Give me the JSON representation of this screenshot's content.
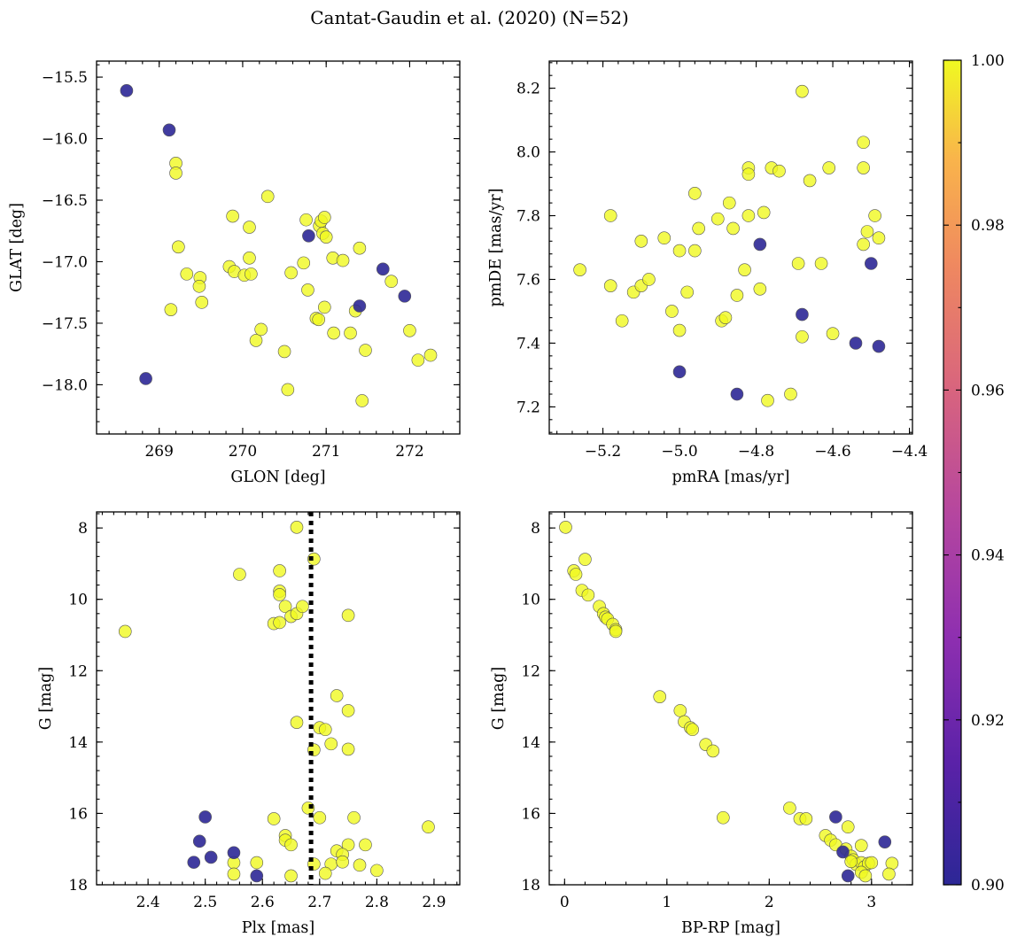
{
  "figure_title": "Cantat-Gaudin et al. (2020) (N=52)",
  "colors": {
    "member_high": "#f0f921",
    "member_low": "#2c2796",
    "colormap": "plasma"
  },
  "chart_data": [
    {
      "type": "scatter",
      "id": "glon_glat",
      "xlabel": "GLON [deg]",
      "ylabel": "GLAT [deg]",
      "xlim": [
        268.25,
        272.6
      ],
      "ylim": [
        -18.4,
        -15.37
      ],
      "y_inverted": false,
      "xticks": [
        269,
        270,
        271,
        272
      ],
      "xtick_labels": [
        "269",
        "270",
        "271",
        "272"
      ],
      "yticks": [
        -15.5,
        -16.0,
        -16.5,
        -17.0,
        -17.5,
        -18.0
      ],
      "ytick_labels": [
        "−15.5",
        "−16.0",
        "−16.5",
        "−17.0",
        "−17.5",
        "−18.0"
      ],
      "points_high": [
        [
          269.2,
          -16.2
        ],
        [
          269.2,
          -16.28
        ],
        [
          269.23,
          -16.88
        ],
        [
          269.33,
          -17.1
        ],
        [
          269.49,
          -17.13
        ],
        [
          269.48,
          -17.2
        ],
        [
          269.51,
          -17.33
        ],
        [
          269.14,
          -17.39
        ],
        [
          269.84,
          -17.04
        ],
        [
          269.88,
          -16.63
        ],
        [
          269.9,
          -17.08
        ],
        [
          270.02,
          -17.11
        ],
        [
          270.08,
          -16.97
        ],
        [
          270.1,
          -17.1
        ],
        [
          270.08,
          -16.72
        ],
        [
          270.16,
          -17.64
        ],
        [
          270.22,
          -17.55
        ],
        [
          270.3,
          -16.47
        ],
        [
          270.5,
          -17.73
        ],
        [
          270.54,
          -18.04
        ],
        [
          270.58,
          -17.09
        ],
        [
          270.76,
          -16.66
        ],
        [
          270.73,
          -17.01
        ],
        [
          270.78,
          -17.23
        ],
        [
          270.88,
          -17.46
        ],
        [
          270.91,
          -17.47
        ],
        [
          270.92,
          -16.71
        ],
        [
          270.94,
          -16.67
        ],
        [
          270.98,
          -16.64
        ],
        [
          270.96,
          -16.77
        ],
        [
          271.0,
          -16.8
        ],
        [
          270.98,
          -17.37
        ],
        [
          271.08,
          -16.97
        ],
        [
          271.09,
          -17.58
        ],
        [
          271.2,
          -16.99
        ],
        [
          271.29,
          -17.58
        ],
        [
          271.35,
          -17.4
        ],
        [
          271.4,
          -16.89
        ],
        [
          271.43,
          -18.13
        ],
        [
          271.47,
          -17.72
        ],
        [
          271.78,
          -17.16
        ],
        [
          272.0,
          -17.56
        ],
        [
          272.1,
          -17.8
        ],
        [
          272.25,
          -17.76
        ]
      ],
      "points_low": [
        [
          268.61,
          -15.61
        ],
        [
          269.12,
          -15.93
        ],
        [
          268.84,
          -17.95
        ],
        [
          270.79,
          -16.79
        ],
        [
          271.4,
          -17.36
        ],
        [
          271.68,
          -17.06
        ],
        [
          271.94,
          -17.28
        ]
      ]
    },
    {
      "type": "scatter",
      "id": "pm",
      "xlabel": "pmRA [mas/yr]",
      "ylabel": "pmDE [mas/yr]",
      "xlim": [
        -5.34,
        -4.392
      ],
      "ylim": [
        7.115,
        8.285
      ],
      "y_inverted": false,
      "xticks": [
        -5.2,
        -5.0,
        -4.8,
        -4.6,
        -4.4
      ],
      "xtick_labels": [
        "−5.2",
        "−5.0",
        "−4.8",
        "−4.6",
        "−4.4"
      ],
      "yticks": [
        7.2,
        7.4,
        7.6,
        7.8,
        8.0,
        8.2
      ],
      "ytick_labels": [
        "7.2",
        "7.4",
        "7.6",
        "7.8",
        "8.0",
        "8.2"
      ],
      "points_high": [
        [
          -5.26,
          7.63
        ],
        [
          -5.18,
          7.8
        ],
        [
          -5.18,
          7.58
        ],
        [
          -5.15,
          7.47
        ],
        [
          -5.12,
          7.56
        ],
        [
          -5.1,
          7.58
        ],
        [
          -5.1,
          7.72
        ],
        [
          -5.08,
          7.6
        ],
        [
          -5.04,
          7.73
        ],
        [
          -5.02,
          7.5
        ],
        [
          -5.0,
          7.69
        ],
        [
          -5.0,
          7.44
        ],
        [
          -4.98,
          7.56
        ],
        [
          -4.96,
          7.87
        ],
        [
          -4.96,
          7.69
        ],
        [
          -4.95,
          7.76
        ],
        [
          -4.9,
          7.79
        ],
        [
          -4.89,
          7.47
        ],
        [
          -4.88,
          7.48
        ],
        [
          -4.87,
          7.84
        ],
        [
          -4.86,
          7.76
        ],
        [
          -4.85,
          7.55
        ],
        [
          -4.83,
          7.63
        ],
        [
          -4.82,
          7.95
        ],
        [
          -4.82,
          7.93
        ],
        [
          -4.82,
          7.8
        ],
        [
          -4.79,
          7.57
        ],
        [
          -4.78,
          7.81
        ],
        [
          -4.77,
          7.22
        ],
        [
          -4.76,
          7.95
        ],
        [
          -4.74,
          7.94
        ],
        [
          -4.71,
          7.24
        ],
        [
          -4.69,
          7.65
        ],
        [
          -4.68,
          8.19
        ],
        [
          -4.68,
          7.42
        ],
        [
          -4.66,
          7.91
        ],
        [
          -4.63,
          7.65
        ],
        [
          -4.61,
          7.95
        ],
        [
          -4.6,
          7.43
        ],
        [
          -4.52,
          8.03
        ],
        [
          -4.52,
          7.95
        ],
        [
          -4.52,
          7.71
        ],
        [
          -4.51,
          7.75
        ],
        [
          -4.49,
          7.8
        ],
        [
          -4.48,
          7.73
        ]
      ],
      "points_low": [
        [
          -4.79,
          7.71
        ],
        [
          -5.0,
          7.31
        ],
        [
          -4.85,
          7.24
        ],
        [
          -4.68,
          7.49
        ],
        [
          -4.5,
          7.65
        ],
        [
          -4.54,
          7.4
        ],
        [
          -4.48,
          7.39
        ]
      ]
    },
    {
      "type": "scatter",
      "id": "plx_g",
      "xlabel": "Plx [mas]",
      "ylabel": "G [mag]",
      "xlim": [
        2.31,
        2.945
      ],
      "ylim": [
        18.0,
        7.55
      ],
      "y_inverted": true,
      "vline": {
        "x": 2.685,
        "style": "dotted"
      },
      "xticks": [
        2.4,
        2.5,
        2.6,
        2.7,
        2.8,
        2.9
      ],
      "xtick_labels": [
        "2.4",
        "2.5",
        "2.6",
        "2.7",
        "2.8",
        "2.9"
      ],
      "yticks": [
        8,
        10,
        12,
        14,
        16,
        18
      ],
      "ytick_labels": [
        "8",
        "10",
        "12",
        "14",
        "16",
        "18"
      ],
      "points_high": [
        [
          2.36,
          10.9
        ],
        [
          2.56,
          9.3
        ],
        [
          2.66,
          7.98
        ],
        [
          2.69,
          8.87
        ],
        [
          2.63,
          9.2
        ],
        [
          2.63,
          9.77
        ],
        [
          2.63,
          9.87
        ],
        [
          2.64,
          10.2
        ],
        [
          2.62,
          10.68
        ],
        [
          2.63,
          10.65
        ],
        [
          2.65,
          10.48
        ],
        [
          2.66,
          10.4
        ],
        [
          2.67,
          10.2
        ],
        [
          2.75,
          10.45
        ],
        [
          2.73,
          12.7
        ],
        [
          2.75,
          13.12
        ],
        [
          2.66,
          13.45
        ],
        [
          2.7,
          13.6
        ],
        [
          2.71,
          13.65
        ],
        [
          2.72,
          14.05
        ],
        [
          2.69,
          14.22
        ],
        [
          2.75,
          14.2
        ],
        [
          2.68,
          15.85
        ],
        [
          2.7,
          16.12
        ],
        [
          2.76,
          16.12
        ],
        [
          2.62,
          16.15
        ],
        [
          2.64,
          16.62
        ],
        [
          2.64,
          16.75
        ],
        [
          2.65,
          16.88
        ],
        [
          2.75,
          16.88
        ],
        [
          2.78,
          16.88
        ],
        [
          2.73,
          17.05
        ],
        [
          2.74,
          17.15
        ],
        [
          2.55,
          17.38
        ],
        [
          2.59,
          17.38
        ],
        [
          2.69,
          17.42
        ],
        [
          2.72,
          17.42
        ],
        [
          2.74,
          17.36
        ],
        [
          2.77,
          17.45
        ],
        [
          2.55,
          17.7
        ],
        [
          2.65,
          17.75
        ],
        [
          2.71,
          17.68
        ],
        [
          2.8,
          17.6
        ],
        [
          2.89,
          16.38
        ]
      ],
      "points_low": [
        [
          2.5,
          16.1
        ],
        [
          2.49,
          16.78
        ],
        [
          2.55,
          17.1
        ],
        [
          2.51,
          17.23
        ],
        [
          2.48,
          17.37
        ],
        [
          2.59,
          17.75
        ]
      ]
    },
    {
      "type": "scatter",
      "id": "bprp_g",
      "xlabel": "BP-RP [mag]",
      "ylabel": "G [mag]",
      "xlim": [
        -0.15,
        3.4
      ],
      "ylim": [
        18.0,
        7.55
      ],
      "y_inverted": true,
      "xticks": [
        0,
        1,
        2,
        3
      ],
      "xtick_labels": [
        "0",
        "1",
        "2",
        "3"
      ],
      "yticks": [
        8,
        10,
        12,
        14,
        16,
        18
      ],
      "ytick_labels": [
        "8",
        "10",
        "12",
        "14",
        "16",
        "18"
      ],
      "points_high": [
        [
          0.01,
          7.98
        ],
        [
          0.09,
          9.2
        ],
        [
          0.11,
          9.3
        ],
        [
          0.2,
          8.88
        ],
        [
          0.17,
          9.75
        ],
        [
          0.23,
          9.88
        ],
        [
          0.34,
          10.2
        ],
        [
          0.38,
          10.4
        ],
        [
          0.4,
          10.5
        ],
        [
          0.42,
          10.55
        ],
        [
          0.47,
          10.7
        ],
        [
          0.5,
          10.85
        ],
        [
          0.5,
          10.9
        ],
        [
          0.93,
          12.73
        ],
        [
          1.13,
          13.12
        ],
        [
          1.17,
          13.43
        ],
        [
          1.23,
          13.6
        ],
        [
          1.25,
          13.65
        ],
        [
          1.38,
          14.07
        ],
        [
          1.45,
          14.25
        ],
        [
          1.55,
          16.12
        ],
        [
          2.2,
          15.85
        ],
        [
          2.3,
          16.15
        ],
        [
          2.36,
          16.15
        ],
        [
          2.55,
          16.62
        ],
        [
          2.6,
          16.75
        ],
        [
          2.65,
          16.88
        ],
        [
          2.77,
          16.38
        ],
        [
          2.75,
          17.0
        ],
        [
          2.8,
          17.2
        ],
        [
          2.82,
          17.3
        ],
        [
          2.85,
          17.43
        ],
        [
          2.9,
          17.38
        ],
        [
          2.9,
          16.9
        ],
        [
          2.93,
          17.5
        ],
        [
          2.97,
          17.4
        ],
        [
          3.0,
          17.38
        ],
        [
          2.9,
          17.65
        ],
        [
          2.94,
          17.75
        ],
        [
          3.2,
          17.4
        ],
        [
          3.17,
          17.7
        ],
        [
          2.8,
          17.35
        ]
      ],
      "points_low": [
        [
          2.65,
          16.1
        ],
        [
          2.72,
          17.08
        ],
        [
          3.13,
          16.8
        ],
        [
          2.77,
          17.75
        ]
      ]
    }
  ],
  "colorbar": {
    "min": 0.9,
    "max": 1.0,
    "ticks": [
      0.9,
      0.92,
      0.94,
      0.96,
      0.98,
      1.0
    ],
    "tick_labels": [
      "0.90",
      "0.92",
      "0.94",
      "0.96",
      "0.98",
      "1.00"
    ]
  }
}
